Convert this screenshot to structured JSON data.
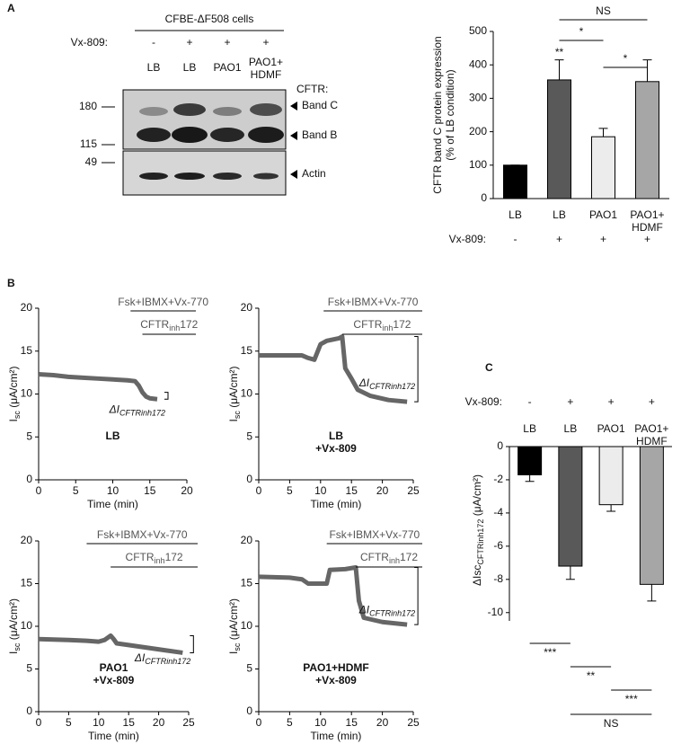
{
  "panel_labels": [
    "A",
    "B",
    "C"
  ],
  "blot": {
    "title": "CFBE-ΔF508 cells",
    "treatment_label": "Vx-809:",
    "treatment": [
      "-",
      "+",
      "+",
      "+"
    ],
    "lanes": [
      "LB",
      "LB",
      "PAO1",
      "PAO1+\nHDMF"
    ],
    "markers": [
      "180",
      "115",
      "49"
    ],
    "cftr_label": "CFTR:",
    "bands": [
      "Band C",
      "Band B",
      "Actin"
    ]
  },
  "chart_data": [
    {
      "type": "bar",
      "ylabel": "CFTR band C protein expression\n(% of LB condition)",
      "categories": [
        "LB",
        "LB",
        "PAO1",
        "PAO1+\nHDMF"
      ],
      "values": [
        100,
        355,
        185,
        350
      ],
      "errors": [
        0,
        60,
        25,
        65
      ],
      "colors": [
        "#000000",
        "#595959",
        "#ececec",
        "#a6a6a6"
      ],
      "ylim": [
        0,
        500
      ],
      "yticks": [
        0,
        100,
        200,
        300,
        400,
        500
      ],
      "treatment_label": "Vx-809:",
      "treatment": [
        "-",
        "+",
        "+",
        "+"
      ],
      "significance": [
        {
          "text": "**",
          "bars": [
            1
          ]
        },
        {
          "text": "*",
          "bars": [
            1,
            2
          ]
        },
        {
          "text": "*",
          "bars": [
            2,
            3
          ]
        },
        {
          "text": "NS",
          "bars": [
            1,
            3
          ]
        }
      ]
    },
    {
      "type": "line",
      "label": "LB",
      "xlabel": "Time (min)",
      "ylabel": [
        "I",
        "sc",
        " (μA/cm²)"
      ],
      "x": [
        0,
        2,
        4,
        6,
        8,
        10,
        12,
        13,
        13.5,
        14,
        14.5,
        15,
        16
      ],
      "values": [
        12.3,
        12.2,
        12.0,
        11.9,
        11.8,
        11.7,
        11.6,
        11.5,
        11.0,
        10.2,
        9.7,
        9.5,
        9.4
      ],
      "color": "#666666",
      "xlim": [
        0,
        20
      ],
      "xticks": [
        0,
        5,
        10,
        15,
        20
      ],
      "ylim": [
        0,
        20
      ],
      "yticks": [
        0,
        5,
        10,
        15,
        20
      ],
      "treatments": [
        {
          "label": [
            "Fsk+IBMX+Vx-770"
          ],
          "start": 12.4
        },
        {
          "label": [
            "CFTR",
            "inh",
            "172"
          ],
          "start": 14
        }
      ],
      "delta_label": [
        "ΔI",
        "CFTRinh172"
      ]
    },
    {
      "type": "line",
      "label": "LB\n+Vx-809",
      "xlabel": "Time (min)",
      "ylabel": [
        "I",
        "sc",
        " (μA/cm²)"
      ],
      "x": [
        0,
        3,
        7,
        8,
        9,
        10,
        11,
        13,
        13.5,
        14,
        15,
        16,
        18,
        21,
        24
      ],
      "values": [
        14.5,
        14.5,
        14.5,
        14.2,
        14.0,
        15.8,
        16.2,
        16.5,
        16.7,
        13.0,
        11.8,
        10.5,
        9.8,
        9.3,
        9.1
      ],
      "color": "#666666",
      "xlim": [
        0,
        25
      ],
      "xticks": [
        0,
        5,
        10,
        15,
        20,
        25
      ],
      "ylim": [
        0,
        20
      ],
      "yticks": [
        0,
        5,
        10,
        15,
        20
      ],
      "treatments": [
        {
          "label": [
            "Fsk+IBMX+Vx-770"
          ],
          "start": 10.5
        },
        {
          "label": [
            "CFTR",
            "inh",
            "172"
          ],
          "start": 13.5
        }
      ],
      "delta_label": [
        "ΔI",
        "CFTRinh172"
      ]
    },
    {
      "type": "line",
      "label": "PAO1\n+Vx-809",
      "xlabel": "Time (min)",
      "ylabel": [
        "I",
        "sc",
        " (μA/cm²)"
      ],
      "x": [
        0,
        5,
        8,
        10,
        11,
        12,
        12.5,
        13,
        15,
        18,
        21,
        24
      ],
      "values": [
        8.5,
        8.4,
        8.3,
        8.2,
        8.4,
        8.9,
        8.5,
        8.0,
        7.8,
        7.5,
        7.2,
        6.9
      ],
      "color": "#666666",
      "xlim": [
        0,
        25
      ],
      "xticks": [
        0,
        5,
        10,
        15,
        20,
        25
      ],
      "ylim": [
        0,
        20
      ],
      "yticks": [
        0,
        5,
        10,
        15,
        20
      ],
      "treatments": [
        {
          "label": [
            "Fsk+IBMX+Vx-770"
          ],
          "start": 8
        },
        {
          "label": [
            "CFTR",
            "inh",
            "172"
          ],
          "start": 12
        }
      ],
      "delta_label": [
        "ΔI",
        "CFTRinh172"
      ]
    },
    {
      "type": "line",
      "label": "PAO1+HDMF\n+Vx-809",
      "xlabel": "Time (min)",
      "ylabel": [
        "I",
        "sc",
        " (μA/cm²)"
      ],
      "x": [
        0,
        5,
        7,
        8,
        11,
        11.5,
        14,
        15.7,
        16.2,
        17,
        20,
        24
      ],
      "values": [
        15.8,
        15.7,
        15.5,
        15.0,
        15.0,
        16.6,
        16.7,
        16.9,
        13.0,
        11.0,
        10.5,
        10.2
      ],
      "color": "#666666",
      "xlim": [
        0,
        25
      ],
      "xticks": [
        0,
        5,
        10,
        15,
        20,
        25
      ],
      "ylim": [
        0,
        20
      ],
      "yticks": [
        0,
        5,
        10,
        15,
        20
      ],
      "treatments": [
        {
          "label": [
            "Fsk+IBMX+Vx-770"
          ],
          "start": 11
        },
        {
          "label": [
            "CFTR",
            "inh",
            "172"
          ],
          "start": 15.7
        }
      ],
      "delta_label": [
        "ΔI",
        "CFTRinh172"
      ]
    },
    {
      "type": "bar",
      "ylabel": [
        "ΔIsc",
        "CFTRinh172",
        " (μA/cm²)"
      ],
      "categories": [
        "LB",
        "LB",
        "PAO1",
        "PAO1+\nHDMF"
      ],
      "values": [
        -1.7,
        -7.2,
        -3.5,
        -8.3
      ],
      "errors": [
        0.4,
        0.8,
        0.4,
        1.0
      ],
      "colors": [
        "#000000",
        "#595959",
        "#ececec",
        "#a6a6a6"
      ],
      "ylim": [
        -10.5,
        0
      ],
      "yticks": [
        0,
        -2,
        -4,
        -6,
        -8,
        -10
      ],
      "treatment_label": "Vx-809:",
      "treatment": [
        "-",
        "+",
        "+",
        "+"
      ],
      "significance": [
        {
          "text": "***",
          "bars": [
            0,
            1
          ]
        },
        {
          "text": "**",
          "bars": [
            1,
            2
          ]
        },
        {
          "text": "***",
          "bars": [
            2,
            3
          ]
        },
        {
          "text": "NS",
          "bars": [
            1,
            3
          ]
        }
      ]
    }
  ]
}
